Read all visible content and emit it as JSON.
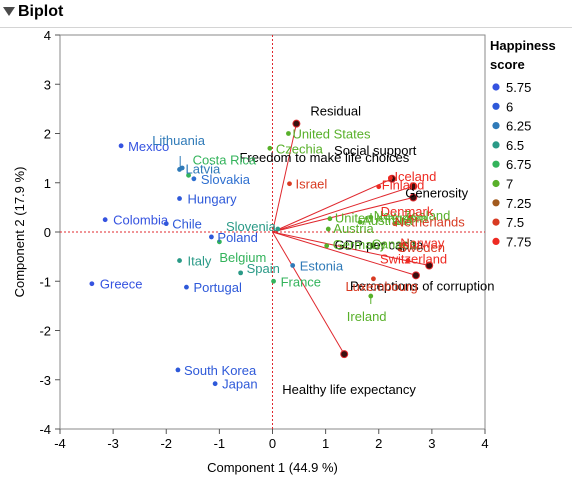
{
  "outline": {
    "title": "Biplot"
  },
  "chart_data": {
    "type": "scatter",
    "xlabel": "Component 1  (44.9 %)",
    "ylabel": "Component 2  (17.9 %)",
    "xlim": [
      -4,
      4
    ],
    "ylim": [
      -4,
      4
    ],
    "xticks": [
      -4,
      -3,
      -2,
      -1,
      0,
      1,
      2,
      3,
      4
    ],
    "yticks": [
      -4,
      -3,
      -2,
      -1,
      0,
      1,
      2,
      3,
      4
    ],
    "reference_lines": {
      "x": 0,
      "y": 0,
      "color": "#e0282e",
      "style": "dotted"
    },
    "legend": {
      "title": "Happiness score",
      "title_lines": [
        "Happiness",
        "score"
      ],
      "position": "right",
      "entries": [
        {
          "label": "5.75",
          "color": "#3553e0"
        },
        {
          "label": "6",
          "color": "#2e59d9"
        },
        {
          "label": "6.25",
          "color": "#2f7ab8"
        },
        {
          "label": "6.5",
          "color": "#2a9a87"
        },
        {
          "label": "6.75",
          "color": "#33b35b"
        },
        {
          "label": "7",
          "color": "#58b02a"
        },
        {
          "label": "7.25",
          "color": "#a25a1e"
        },
        {
          "label": "7.5",
          "color": "#d83a22"
        },
        {
          "label": "7.75",
          "color": "#ee2a22"
        }
      ]
    },
    "points": [
      {
        "label": "Mexico",
        "x": -2.85,
        "y": 1.75,
        "color": "#3553e0"
      },
      {
        "label": "Lithuania",
        "x": -1.7,
        "y": 1.3,
        "color": "#2f7ab8"
      },
      {
        "label": "Costa Rica",
        "x": -1.58,
        "y": 1.15,
        "color": "#33b35b"
      },
      {
        "label": "Latvia",
        "x": -1.75,
        "y": 1.27,
        "color": "#2f7ab8"
      },
      {
        "label": "Slovakia",
        "x": -1.48,
        "y": 1.08,
        "color": "#2e6fd0"
      },
      {
        "label": "Hungary",
        "x": -1.75,
        "y": 0.68,
        "color": "#2e59d9"
      },
      {
        "label": "Colombia",
        "x": -3.15,
        "y": 0.25,
        "color": "#3553e0"
      },
      {
        "label": "Chile",
        "x": -2.0,
        "y": 0.17,
        "color": "#2e59d9"
      },
      {
        "label": "Poland",
        "x": -1.15,
        "y": -0.1,
        "color": "#2e59d9"
      },
      {
        "label": "Belgium",
        "x": -1.0,
        "y": -0.2,
        "color": "#33b35b"
      },
      {
        "label": "Italy",
        "x": -1.75,
        "y": -0.58,
        "color": "#2a9a87"
      },
      {
        "label": "Spain",
        "x": -0.6,
        "y": -0.83,
        "color": "#2a9a87"
      },
      {
        "label": "Portugal",
        "x": -1.62,
        "y": -1.12,
        "color": "#2e59d9"
      },
      {
        "label": "Greece",
        "x": -3.4,
        "y": -1.05,
        "color": "#3553e0"
      },
      {
        "label": "South Korea",
        "x": -1.78,
        "y": -2.8,
        "color": "#2e59d9"
      },
      {
        "label": "Japan",
        "x": -1.08,
        "y": -3.08,
        "color": "#2e59d9"
      },
      {
        "label": "United States",
        "x": 0.3,
        "y": 2.0,
        "color": "#58b02a"
      },
      {
        "label": "Czechia",
        "x": -0.05,
        "y": 1.7,
        "color": "#58b02a"
      },
      {
        "label": "Israel",
        "x": 0.32,
        "y": 0.98,
        "color": "#d83a22"
      },
      {
        "label": "Slovenia",
        "x": 0.1,
        "y": 0.06,
        "color": "#2a9a87"
      },
      {
        "label": "Estonia",
        "x": 0.38,
        "y": -0.68,
        "color": "#2f7ab8"
      },
      {
        "label": "France",
        "x": 0.02,
        "y": -1.0,
        "color": "#33b35b"
      },
      {
        "label": "United Kingdom",
        "x": 1.08,
        "y": 0.27,
        "color": "#58b02a"
      },
      {
        "label": "Austria",
        "x": 1.05,
        "y": 0.06,
        "color": "#58b02a"
      },
      {
        "label": "Germany",
        "x": 1.02,
        "y": -0.28,
        "color": "#58b02a"
      },
      {
        "label": "New Zealand",
        "x": 1.85,
        "y": 0.3,
        "color": "#58b02a"
      },
      {
        "label": "Canada",
        "x": 1.9,
        "y": -0.27,
        "color": "#58b02a"
      },
      {
        "label": "Australia",
        "x": 1.65,
        "y": 0.2,
        "color": "#58b02a"
      },
      {
        "label": "Iceland",
        "x": 2.22,
        "y": 1.1,
        "color": "#ee2a22"
      },
      {
        "label": "Finland",
        "x": 2.0,
        "y": 0.92,
        "color": "#ee2a22"
      },
      {
        "label": "Denmark",
        "x": 2.6,
        "y": 0.3,
        "color": "#ee2a22"
      },
      {
        "label": "Netherlands",
        "x": 2.3,
        "y": 0.17,
        "color": "#d83a22"
      },
      {
        "label": "Sweden",
        "x": 2.4,
        "y": -0.35,
        "color": "#d83a22"
      },
      {
        "label": "Norway",
        "x": 2.48,
        "y": -0.25,
        "color": "#ee2a22"
      },
      {
        "label": "Switzerland",
        "x": 2.55,
        "y": -0.58,
        "color": "#ee2a22"
      },
      {
        "label": "Luxembourg",
        "x": 1.9,
        "y": -0.95,
        "color": "#d83a22"
      },
      {
        "label": "Ireland",
        "x": 1.85,
        "y": -1.3,
        "color": "#58b02a"
      }
    ],
    "vectors": [
      {
        "label": "Residual",
        "x": 0.45,
        "y": 2.2
      },
      {
        "label": "Social support",
        "x": 2.25,
        "y": 1.08
      },
      {
        "label": "Freedom to make life choices",
        "x": 2.65,
        "y": 0.93
      },
      {
        "label": "Generosity",
        "x": 2.65,
        "y": 0.7
      },
      {
        "label": "GDP per capita",
        "x": 2.95,
        "y": -0.68
      },
      {
        "label": "Perceptions of corruption",
        "x": 2.7,
        "y": -0.88
      },
      {
        "label": "Healthy life expectancy",
        "x": 1.35,
        "y": -2.48
      }
    ]
  }
}
